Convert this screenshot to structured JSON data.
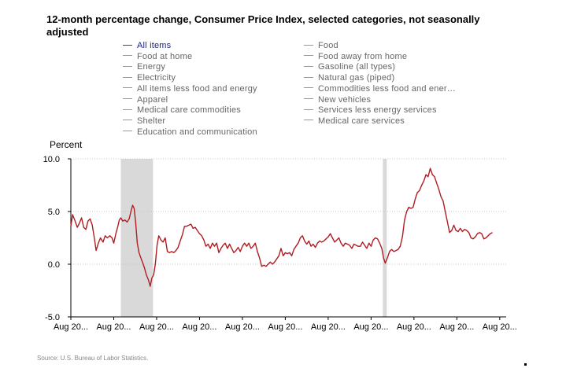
{
  "chart_data": {
    "type": "line",
    "title": "12-month percentage change, Consumer Price Index, selected categories, not seasonally adjusted",
    "ylabel": "Percent",
    "xlabel": "",
    "ylim": [
      -5.0,
      10.0
    ],
    "y_ticks": [
      "10.0",
      "5.0",
      "0.0",
      "-5.0"
    ],
    "y_tick_values": [
      10,
      5,
      0,
      -5
    ],
    "x_ticks": [
      "Aug 20...",
      "Aug 20...",
      "Aug 20...",
      "Aug 20...",
      "Aug 20...",
      "Aug 20...",
      "Aug 20...",
      "Aug 20...",
      "Aug 20...",
      "Aug 20...",
      "Aug 20..."
    ],
    "x_tick_values": [
      0,
      2,
      4,
      6,
      8,
      10,
      12,
      14,
      16,
      18,
      20
    ],
    "xlim": [
      0,
      20.3
    ],
    "recessions": [
      [
        2.33,
        3.83
      ],
      [
        14.55,
        14.73
      ]
    ],
    "legend": [
      {
        "label": "All items",
        "active": true
      },
      {
        "label": "Food",
        "active": false
      },
      {
        "label": "Food at home",
        "active": false
      },
      {
        "label": "Food away from home",
        "active": false
      },
      {
        "label": "Energy",
        "active": false
      },
      {
        "label": "Gasoline (all types)",
        "active": false
      },
      {
        "label": "Electricity",
        "active": false
      },
      {
        "label": "Natural gas (piped)",
        "active": false
      },
      {
        "label": "All items less food and energy",
        "active": false
      },
      {
        "label": "Commodities less food and ener…",
        "active": false
      },
      {
        "label": "Apparel",
        "active": false
      },
      {
        "label": "New vehicles",
        "active": false
      },
      {
        "label": "Medical care commodities",
        "active": false
      },
      {
        "label": "Services less energy services",
        "active": false
      },
      {
        "label": "Shelter",
        "active": false
      },
      {
        "label": "Medical care services",
        "active": false
      },
      {
        "label": "Education and communication",
        "active": false
      }
    ],
    "series": [
      {
        "name": "All items",
        "color": "#b01c22",
        "points": [
          [
            0.0,
            3.6
          ],
          [
            0.08,
            4.7
          ],
          [
            0.18,
            4.2
          ],
          [
            0.3,
            3.5
          ],
          [
            0.4,
            3.9
          ],
          [
            0.5,
            4.4
          ],
          [
            0.6,
            3.5
          ],
          [
            0.7,
            3.3
          ],
          [
            0.8,
            4.1
          ],
          [
            0.9,
            4.3
          ],
          [
            1.0,
            3.7
          ],
          [
            1.1,
            2.4
          ],
          [
            1.18,
            1.3
          ],
          [
            1.28,
            2.0
          ],
          [
            1.38,
            2.5
          ],
          [
            1.5,
            2.1
          ],
          [
            1.6,
            2.7
          ],
          [
            1.7,
            2.5
          ],
          [
            1.82,
            2.7
          ],
          [
            1.92,
            2.5
          ],
          [
            2.0,
            2.0
          ],
          [
            2.1,
            2.9
          ],
          [
            2.18,
            3.5
          ],
          [
            2.26,
            4.2
          ],
          [
            2.33,
            4.4
          ],
          [
            2.42,
            4.1
          ],
          [
            2.52,
            4.2
          ],
          [
            2.62,
            4.0
          ],
          [
            2.72,
            4.3
          ],
          [
            2.8,
            5.0
          ],
          [
            2.88,
            5.6
          ],
          [
            2.95,
            5.3
          ],
          [
            3.02,
            4.0
          ],
          [
            3.1,
            2.0
          ],
          [
            3.18,
            1.1
          ],
          [
            3.28,
            0.5
          ],
          [
            3.36,
            0.1
          ],
          [
            3.44,
            -0.4
          ],
          [
            3.52,
            -1.0
          ],
          [
            3.62,
            -1.5
          ],
          [
            3.7,
            -2.1
          ],
          [
            3.78,
            -1.3
          ],
          [
            3.86,
            -1.0
          ],
          [
            3.94,
            0.0
          ],
          [
            4.02,
            1.8
          ],
          [
            4.1,
            2.7
          ],
          [
            4.2,
            2.3
          ],
          [
            4.3,
            2.1
          ],
          [
            4.4,
            2.5
          ],
          [
            4.5,
            1.2
          ],
          [
            4.6,
            1.1
          ],
          [
            4.7,
            1.2
          ],
          [
            4.8,
            1.1
          ],
          [
            4.9,
            1.3
          ],
          [
            5.0,
            1.6
          ],
          [
            5.1,
            2.2
          ],
          [
            5.2,
            2.8
          ],
          [
            5.3,
            3.6
          ],
          [
            5.4,
            3.6
          ],
          [
            5.5,
            3.7
          ],
          [
            5.6,
            3.8
          ],
          [
            5.7,
            3.4
          ],
          [
            5.8,
            3.5
          ],
          [
            5.9,
            3.2
          ],
          [
            6.0,
            2.9
          ],
          [
            6.1,
            2.7
          ],
          [
            6.2,
            2.3
          ],
          [
            6.3,
            1.7
          ],
          [
            6.4,
            1.9
          ],
          [
            6.5,
            1.5
          ],
          [
            6.6,
            2.0
          ],
          [
            6.7,
            1.7
          ],
          [
            6.8,
            2.0
          ],
          [
            6.9,
            1.1
          ],
          [
            7.0,
            1.5
          ],
          [
            7.1,
            1.8
          ],
          [
            7.2,
            2.0
          ],
          [
            7.3,
            1.5
          ],
          [
            7.4,
            1.9
          ],
          [
            7.5,
            1.5
          ],
          [
            7.6,
            1.1
          ],
          [
            7.7,
            1.3
          ],
          [
            7.8,
            1.6
          ],
          [
            7.9,
            1.2
          ],
          [
            8.0,
            1.7
          ],
          [
            8.1,
            2.0
          ],
          [
            8.2,
            1.7
          ],
          [
            8.3,
            2.0
          ],
          [
            8.4,
            1.5
          ],
          [
            8.5,
            1.7
          ],
          [
            8.6,
            2.0
          ],
          [
            8.7,
            1.2
          ],
          [
            8.8,
            0.6
          ],
          [
            8.9,
            -0.2
          ],
          [
            9.0,
            -0.1
          ],
          [
            9.1,
            -0.2
          ],
          [
            9.2,
            0.0
          ],
          [
            9.3,
            0.2
          ],
          [
            9.4,
            0.0
          ],
          [
            9.5,
            0.2
          ],
          [
            9.6,
            0.5
          ],
          [
            9.7,
            0.8
          ],
          [
            9.8,
            1.5
          ],
          [
            9.9,
            0.8
          ],
          [
            10.0,
            1.1
          ],
          [
            10.1,
            1.0
          ],
          [
            10.2,
            1.1
          ],
          [
            10.3,
            0.8
          ],
          [
            10.4,
            1.4
          ],
          [
            10.5,
            1.7
          ],
          [
            10.6,
            2.0
          ],
          [
            10.7,
            2.5
          ],
          [
            10.8,
            2.7
          ],
          [
            10.9,
            2.2
          ],
          [
            11.0,
            1.9
          ],
          [
            11.1,
            2.2
          ],
          [
            11.2,
            1.7
          ],
          [
            11.3,
            1.9
          ],
          [
            11.4,
            1.6
          ],
          [
            11.5,
            2.0
          ],
          [
            11.6,
            2.2
          ],
          [
            11.7,
            2.1
          ],
          [
            11.8,
            2.2
          ],
          [
            11.9,
            2.4
          ],
          [
            12.0,
            2.6
          ],
          [
            12.1,
            2.9
          ],
          [
            12.2,
            2.5
          ],
          [
            12.3,
            2.1
          ],
          [
            12.4,
            2.3
          ],
          [
            12.5,
            2.5
          ],
          [
            12.6,
            2.0
          ],
          [
            12.7,
            1.7
          ],
          [
            12.8,
            2.0
          ],
          [
            12.9,
            1.9
          ],
          [
            13.0,
            1.8
          ],
          [
            13.1,
            1.5
          ],
          [
            13.2,
            1.9
          ],
          [
            13.3,
            1.8
          ],
          [
            13.4,
            1.7
          ],
          [
            13.5,
            1.7
          ],
          [
            13.6,
            2.1
          ],
          [
            13.7,
            1.8
          ],
          [
            13.8,
            1.5
          ],
          [
            13.9,
            2.0
          ],
          [
            14.0,
            1.7
          ],
          [
            14.1,
            2.3
          ],
          [
            14.2,
            2.5
          ],
          [
            14.3,
            2.4
          ],
          [
            14.4,
            2.0
          ],
          [
            14.5,
            1.5
          ],
          [
            14.58,
            0.6
          ],
          [
            14.66,
            0.1
          ],
          [
            14.76,
            0.6
          ],
          [
            14.86,
            1.2
          ],
          [
            14.96,
            1.4
          ],
          [
            15.06,
            1.2
          ],
          [
            15.16,
            1.3
          ],
          [
            15.26,
            1.4
          ],
          [
            15.36,
            1.7
          ],
          [
            15.46,
            2.6
          ],
          [
            15.56,
            4.2
          ],
          [
            15.66,
            5.0
          ],
          [
            15.76,
            5.4
          ],
          [
            15.86,
            5.3
          ],
          [
            15.96,
            5.4
          ],
          [
            16.06,
            6.2
          ],
          [
            16.16,
            6.8
          ],
          [
            16.26,
            7.0
          ],
          [
            16.36,
            7.5
          ],
          [
            16.46,
            7.9
          ],
          [
            16.56,
            8.5
          ],
          [
            16.66,
            8.3
          ],
          [
            16.76,
            9.1
          ],
          [
            16.86,
            8.5
          ],
          [
            16.96,
            8.3
          ],
          [
            17.06,
            7.7
          ],
          [
            17.16,
            7.1
          ],
          [
            17.26,
            6.4
          ],
          [
            17.36,
            6.0
          ],
          [
            17.46,
            5.0
          ],
          [
            17.56,
            4.0
          ],
          [
            17.66,
            3.0
          ],
          [
            17.76,
            3.2
          ],
          [
            17.86,
            3.7
          ],
          [
            17.96,
            3.2
          ],
          [
            18.06,
            3.1
          ],
          [
            18.16,
            3.4
          ],
          [
            18.26,
            3.1
          ],
          [
            18.36,
            3.3
          ],
          [
            18.46,
            3.2
          ],
          [
            18.56,
            3.0
          ],
          [
            18.66,
            2.5
          ],
          [
            18.76,
            2.4
          ],
          [
            18.86,
            2.6
          ],
          [
            18.96,
            2.9
          ],
          [
            19.06,
            3.0
          ],
          [
            19.16,
            2.9
          ],
          [
            19.26,
            2.4
          ],
          [
            19.36,
            2.5
          ],
          [
            19.46,
            2.7
          ],
          [
            19.56,
            2.9
          ],
          [
            19.66,
            3.0
          ]
        ]
      }
    ]
  },
  "source": "Source: U.S. Bureau of Labor Statistics."
}
